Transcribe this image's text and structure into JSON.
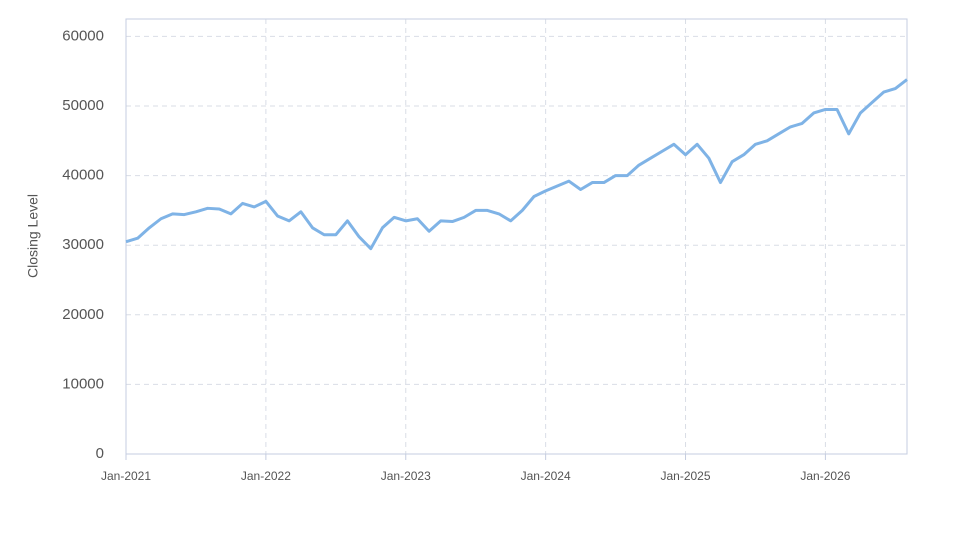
{
  "chart_data": {
    "type": "line",
    "y_label": "Closing Level",
    "x": [
      "2021-01",
      "2021-02",
      "2021-03",
      "2021-04",
      "2021-05",
      "2021-06",
      "2021-07",
      "2021-08",
      "2021-09",
      "2021-10",
      "2021-11",
      "2021-12",
      "2022-01",
      "2022-02",
      "2022-03",
      "2022-04",
      "2022-05",
      "2022-06",
      "2022-07",
      "2022-08",
      "2022-09",
      "2022-10",
      "2022-11",
      "2022-12",
      "2023-01",
      "2023-02",
      "2023-03",
      "2023-04",
      "2023-05",
      "2023-06",
      "2023-07",
      "2023-08",
      "2023-09",
      "2023-10",
      "2023-11",
      "2023-12",
      "2024-01",
      "2024-02",
      "2024-03",
      "2024-04",
      "2024-05",
      "2024-06",
      "2024-07",
      "2024-08",
      "2024-09",
      "2024-10",
      "2024-11",
      "2024-12",
      "2025-01",
      "2025-02",
      "2025-03",
      "2025-04",
      "2025-05",
      "2025-06",
      "2025-07",
      "2025-08",
      "2025-09",
      "2025-10",
      "2025-11",
      "2025-12",
      "2026-01",
      "2026-02",
      "2026-03",
      "2026-04",
      "2026-05",
      "2026-06",
      "2026-07",
      "2026-08"
    ],
    "series": [
      {
        "name": "Closing Level",
        "color": "#7fb3e6",
        "values": [
          30500,
          31000,
          32500,
          33800,
          34500,
          34400,
          34800,
          35300,
          35200,
          34500,
          36000,
          35500,
          36300,
          34200,
          33500,
          34800,
          32500,
          31500,
          31500,
          33500,
          31200,
          29500,
          32500,
          34000,
          33500,
          33800,
          32000,
          33500,
          33400,
          34000,
          35000,
          35000,
          34500,
          33500,
          35000,
          37000,
          37800,
          38500,
          39200,
          38000,
          39000,
          39000,
          40000,
          40000,
          41500,
          42500,
          43500,
          44500,
          43000,
          44500,
          42500,
          39000,
          42000,
          43000,
          44500,
          45000,
          46000,
          47000,
          47500,
          49000,
          49500,
          49500,
          46000,
          49000,
          50500,
          52000,
          52500,
          53800
        ]
      }
    ],
    "xlim": [
      "2021-01",
      "2026-08"
    ],
    "xticks": [
      {
        "value": "2021-01",
        "label": "Jan-2021"
      },
      {
        "value": "2022-01",
        "label": "Jan-2022"
      },
      {
        "value": "2023-01",
        "label": "Jan-2023"
      },
      {
        "value": "2024-01",
        "label": "Jan-2024"
      },
      {
        "value": "2025-01",
        "label": "Jan-2025"
      },
      {
        "value": "2026-01",
        "label": "Jan-2026"
      }
    ],
    "ylim": [
      0,
      62500
    ],
    "yticks": [
      0,
      10000,
      20000,
      30000,
      40000,
      50000,
      60000
    ],
    "grid": true
  }
}
